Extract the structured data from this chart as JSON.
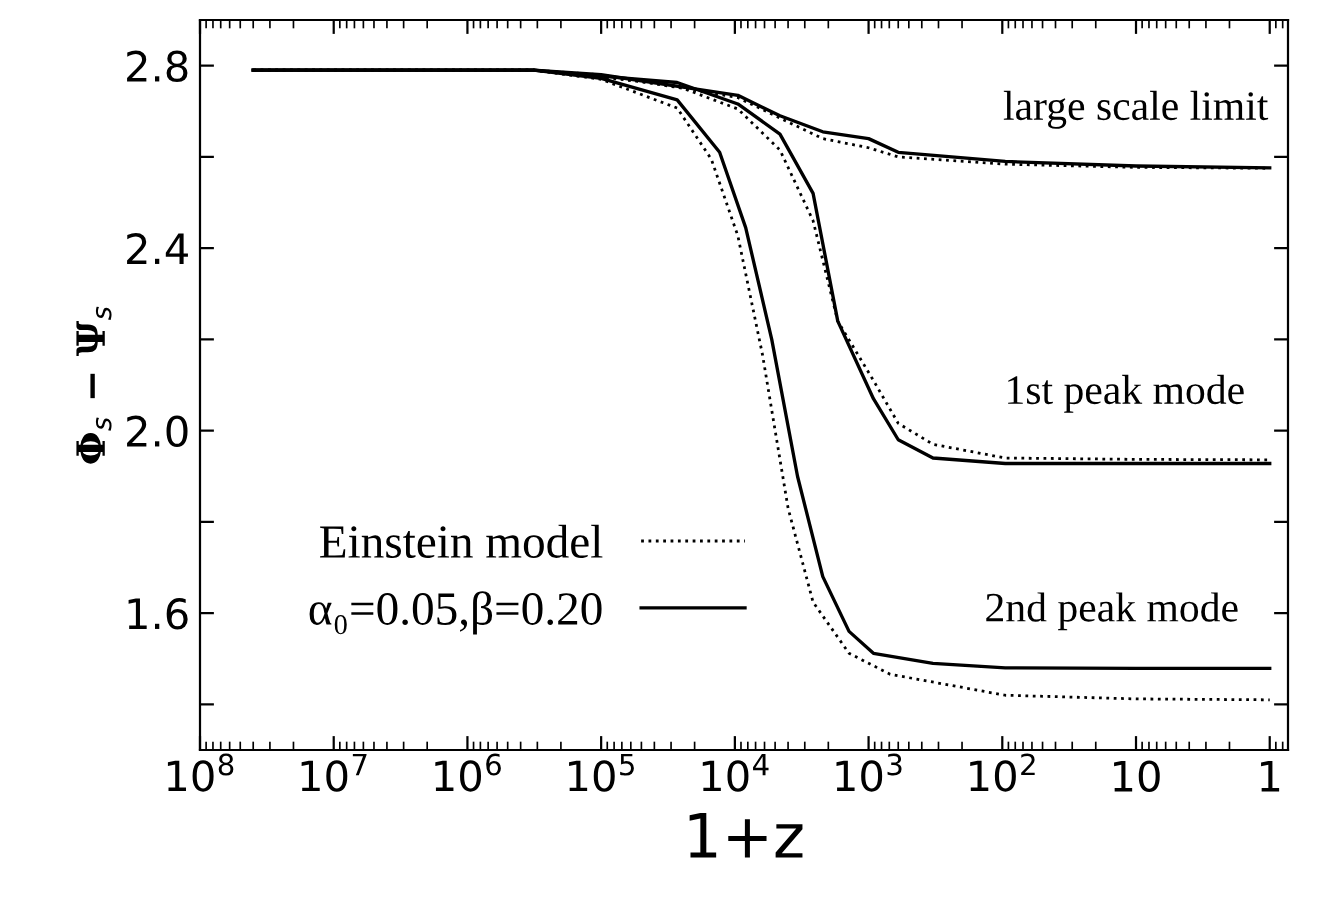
{
  "chart_data": {
    "type": "line",
    "xlabel": "1+z",
    "ylabel": "Φ$_{s}$ − Ψ$_{s}$",
    "log": "x",
    "xlim": [
      100000000.0,
      0.73
    ],
    "ylim": [
      1.3,
      2.9
    ],
    "xticks": [
      {
        "value": 100000000.0,
        "label": "10$^{8}$"
      },
      {
        "value": 10000000.0,
        "label": "10$^{7}$"
      },
      {
        "value": 1000000.0,
        "label": "10$^{6}$"
      },
      {
        "value": 100000.0,
        "label": "10$^{5}$"
      },
      {
        "value": 10000.0,
        "label": "10$^{4}$"
      },
      {
        "value": 1000.0,
        "label": "10$^{3}$"
      },
      {
        "value": 100.0,
        "label": "10$^{2}$"
      },
      10,
      1
    ],
    "yticks": [
      {
        "value": 1.4,
        "label": null
      },
      1.6,
      {
        "value": 1.8,
        "label": null
      },
      {
        "value": 2.0,
        "label": "2.0"
      },
      {
        "value": 2.2,
        "label": null
      },
      2.4,
      {
        "value": 2.6,
        "label": null
      },
      2.8
    ],
    "grid": false,
    "legend": "bottom left",
    "marker": "none",
    "series": [
      {
        "name": "Einstein model",
        "color": "#000000",
        "line_style": "dotted",
        "x": [
          40000000.0,
          320000.0,
          100000.0,
          9500,
          4600,
          2200,
          1000,
          600,
          95,
          10,
          1
        ],
        "values": [
          2.79,
          2.79,
          2.78,
          2.73,
          2.685,
          2.64,
          2.62,
          2.6,
          2.584,
          2.577,
          2.575
        ]
      },
      {
        "name": "α₀=0.05,β=0.20",
        "color": "#000000",
        "line_style": "solid",
        "x": [
          40000000.0,
          320000.0,
          100000.0,
          9500,
          4600,
          2200,
          1000,
          600,
          95,
          10,
          1
        ],
        "values": [
          2.79,
          2.79,
          2.78,
          2.735,
          2.69,
          2.655,
          2.64,
          2.61,
          2.59,
          2.58,
          2.576
        ]
      },
      {
        "color": "#000000",
        "line_style": "dotted",
        "x": [
          40000000.0,
          320000.0,
          100000.0,
          27000.0,
          9500,
          4600,
          2600,
          1700,
          920,
          600,
          330,
          95,
          10,
          1
        ],
        "values": [
          2.79,
          2.79,
          2.775,
          2.755,
          2.705,
          2.615,
          2.46,
          2.24,
          2.11,
          2.016,
          1.97,
          1.94,
          1.937,
          1.936
        ]
      },
      {
        "color": "#000000",
        "line_style": "solid",
        "x": [
          40000000.0,
          320000.0,
          100000.0,
          27000.0,
          9500,
          4600,
          2600,
          1700,
          920,
          600,
          330,
          95,
          10,
          1
        ],
        "values": [
          2.79,
          2.79,
          2.777,
          2.763,
          2.716,
          2.65,
          2.52,
          2.24,
          2.07,
          1.98,
          1.94,
          1.928,
          1.928,
          1.928
        ]
      },
      {
        "color": "#000000",
        "line_style": "dotted",
        "x": [
          40000000.0,
          320000.0,
          100000.0,
          27000.0,
          15000.0,
          9500,
          6200,
          4000,
          2600,
          1400,
          690,
          95,
          10,
          1
        ],
        "values": [
          2.79,
          2.79,
          2.77,
          2.707,
          2.595,
          2.427,
          2.165,
          1.83,
          1.624,
          1.512,
          1.466,
          1.42,
          1.412,
          1.41
        ]
      },
      {
        "color": "#000000",
        "line_style": "solid",
        "x": [
          40000000.0,
          320000.0,
          100000.0,
          27000.0,
          13000.0,
          8300,
          5300,
          3400,
          2200,
          1400,
          920,
          330,
          95,
          10,
          1
        ],
        "values": [
          2.79,
          2.79,
          2.772,
          2.725,
          2.61,
          2.445,
          2.2,
          1.9,
          1.68,
          1.56,
          1.512,
          1.49,
          1.48,
          1.479,
          1.479
        ]
      }
    ],
    "annotations": [
      "large scale limit",
      "1st peak mode",
      "2nd peak mode"
    ]
  }
}
